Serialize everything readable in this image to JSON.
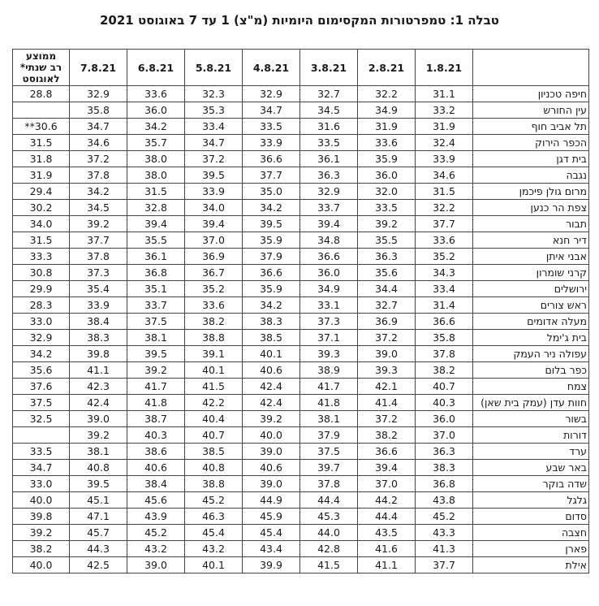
{
  "title": "טבלה 1: טמפרטורות המקסימום היומיות (מ\"צ) 1 עד 7 באוגוסט 2021",
  "table": {
    "station_header": "",
    "date_headers": [
      "1.8.21",
      "2.8.21",
      "3.8.21",
      "4.8.21",
      "5.8.21",
      "6.8.21",
      "7.8.21"
    ],
    "avg_header_lines": [
      "ממוצע",
      "רב שנתי*",
      "לאוגוסט"
    ],
    "rows": [
      {
        "station": "חיפה טכניון",
        "temps": [
          "31.1",
          "32.2",
          "32.7",
          "32.9",
          "32.3",
          "33.6",
          "32.9"
        ],
        "avg": "28.8"
      },
      {
        "station": "עין החורש",
        "temps": [
          "33.2",
          "34.9",
          "34.5",
          "34.7",
          "35.3",
          "36.0",
          "35.8"
        ],
        "avg": ""
      },
      {
        "station": "תל אביב חוף",
        "temps": [
          "31.9",
          "31.9",
          "31.6",
          "33.5",
          "33.4",
          "34.2",
          "34.7"
        ],
        "avg": "**30.6"
      },
      {
        "station": "הכפר הירוק",
        "temps": [
          "32.4",
          "33.6",
          "33.5",
          "33.9",
          "34.7",
          "35.7",
          "34.6"
        ],
        "avg": "31.5"
      },
      {
        "station": "בית דגן",
        "temps": [
          "33.9",
          "35.9",
          "36.1",
          "36.6",
          "37.2",
          "38.0",
          "37.2"
        ],
        "avg": "31.8"
      },
      {
        "station": "נגבה",
        "temps": [
          "34.6",
          "36.0",
          "36.3",
          "37.7",
          "39.5",
          "38.0",
          "37.8"
        ],
        "avg": "31.9"
      },
      {
        "station": "מרום גולן פיכמן",
        "temps": [
          "31.5",
          "32.0",
          "32.9",
          "35.0",
          "33.9",
          "31.5",
          "34.2"
        ],
        "avg": "29.4"
      },
      {
        "station": "צפת הר כנען",
        "temps": [
          "32.2",
          "33.5",
          "33.7",
          "34.2",
          "34.0",
          "32.8",
          "34.5"
        ],
        "avg": "30.2"
      },
      {
        "station": "תבור",
        "temps": [
          "37.7",
          "39.2",
          "39.4",
          "39.5",
          "39.4",
          "39.4",
          "39.2"
        ],
        "avg": "34.0"
      },
      {
        "station": "דיר חנא",
        "temps": [
          "33.6",
          "35.5",
          "34.8",
          "35.9",
          "37.0",
          "35.5",
          "37.7"
        ],
        "avg": "31.5"
      },
      {
        "station": "אבני איתן",
        "temps": [
          "35.2",
          "36.3",
          "36.6",
          "37.9",
          "36.9",
          "36.1",
          "37.8"
        ],
        "avg": "33.3"
      },
      {
        "station": "קרני שומרון",
        "temps": [
          "34.3",
          "35.6",
          "36.0",
          "36.6",
          "36.7",
          "36.8",
          "37.3"
        ],
        "avg": "30.8"
      },
      {
        "station": "ירושלים",
        "temps": [
          "33.4",
          "34.4",
          "34.9",
          "35.9",
          "35.2",
          "35.1",
          "35.4"
        ],
        "avg": "29.9"
      },
      {
        "station": "ראש צורים",
        "temps": [
          "31.4",
          "32.7",
          "33.1",
          "34.2",
          "33.6",
          "33.7",
          "33.9"
        ],
        "avg": "28.3"
      },
      {
        "station": "מעלה אדומים",
        "temps": [
          "36.6",
          "36.9",
          "37.3",
          "38.3",
          "38.2",
          "37.5",
          "38.4"
        ],
        "avg": "33.0"
      },
      {
        "station": "בית ג'ימל",
        "temps": [
          "35.8",
          "37.2",
          "37.1",
          "38.5",
          "38.8",
          "38.1",
          "38.3"
        ],
        "avg": "32.9"
      },
      {
        "station": "עפולה ניר העמק",
        "temps": [
          "37.8",
          "39.0",
          "39.3",
          "40.1",
          "39.1",
          "39.5",
          "39.8"
        ],
        "avg": "34.2"
      },
      {
        "station": "כפר בלום",
        "temps": [
          "38.2",
          "39.3",
          "38.9",
          "40.6",
          "40.1",
          "39.2",
          "41.1"
        ],
        "avg": "35.6"
      },
      {
        "station": "צמח",
        "temps": [
          "40.7",
          "42.1",
          "41.7",
          "42.4",
          "41.5",
          "41.7",
          "42.3"
        ],
        "avg": "37.6"
      },
      {
        "station": "חוות עדן (עמק בית שאן)",
        "temps": [
          "40.3",
          "41.4",
          "41.8",
          "42.4",
          "42.2",
          "41.8",
          "42.4"
        ],
        "avg": "37.5"
      },
      {
        "station": "בשור",
        "temps": [
          "36.0",
          "37.2",
          "38.1",
          "39.2",
          "40.4",
          "38.7",
          "39.0"
        ],
        "avg": "32.5"
      },
      {
        "station": "דורות",
        "temps": [
          "37.0",
          "38.2",
          "37.9",
          "40.0",
          "40.7",
          "40.3",
          "39.2"
        ],
        "avg": ""
      },
      {
        "station": "ערד",
        "temps": [
          "36.3",
          "36.6",
          "37.5",
          "39.0",
          "38.5",
          "38.6",
          "38.1"
        ],
        "avg": "33.5"
      },
      {
        "station": "באר שבע",
        "temps": [
          "38.3",
          "39.4",
          "39.7",
          "40.6",
          "40.8",
          "40.6",
          "40.8"
        ],
        "avg": "34.7"
      },
      {
        "station": "שדה בוקר",
        "temps": [
          "36.8",
          "37.0",
          "37.8",
          "39.0",
          "38.8",
          "38.4",
          "39.5"
        ],
        "avg": "33.0"
      },
      {
        "station": "גלגל",
        "temps": [
          "43.8",
          "44.2",
          "44.4",
          "44.9",
          "45.2",
          "45.6",
          "45.1"
        ],
        "avg": "40.0"
      },
      {
        "station": "סדום",
        "temps": [
          "45.2",
          "44.4",
          "45.3",
          "45.9",
          "46.3",
          "43.9",
          "47.1"
        ],
        "avg": "39.8"
      },
      {
        "station": "חצבה",
        "temps": [
          "43.3",
          "43.5",
          "44.0",
          "45.4",
          "45.4",
          "45.2",
          "45.7"
        ],
        "avg": "39.2"
      },
      {
        "station": "פארן",
        "temps": [
          "41.3",
          "41.6",
          "42.8",
          "43.4",
          "43.2",
          "43.2",
          "44.3"
        ],
        "avg": "38.2"
      },
      {
        "station": "אילת",
        "temps": [
          "37.7",
          "41.1",
          "41.5",
          "39.9",
          "40.1",
          "39.0",
          "42.5"
        ],
        "avg": "40.0"
      }
    ]
  }
}
